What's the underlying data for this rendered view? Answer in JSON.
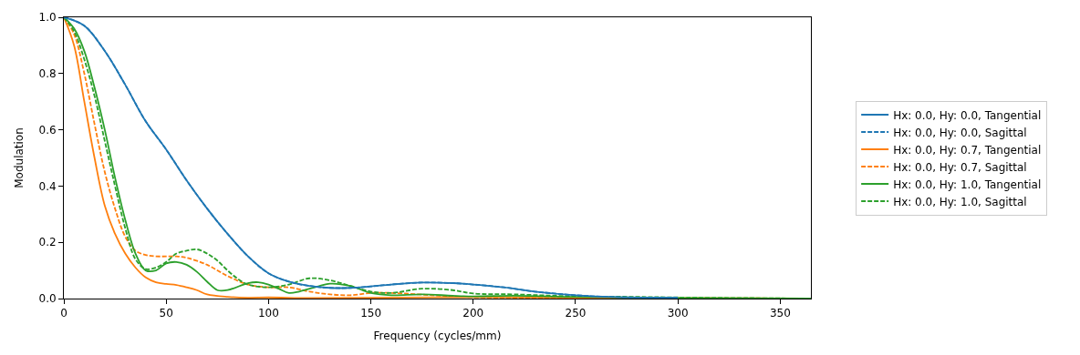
{
  "chart_data": {
    "type": "line",
    "xlabel": "Frequency (cycles/mm)",
    "ylabel": "Modulation",
    "xlim": [
      0,
      365
    ],
    "ylim": [
      0,
      1
    ],
    "xticks": [
      0,
      50,
      100,
      150,
      200,
      250,
      300,
      350
    ],
    "yticks": [
      {
        "value": 0,
        "label": "0.0"
      },
      {
        "value": 0.2,
        "label": "0.2"
      },
      {
        "value": 0.4,
        "label": "0.4"
      },
      {
        "value": 0.6,
        "label": "0.6"
      },
      {
        "value": 0.8,
        "label": "0.8"
      },
      {
        "value": 1,
        "label": "1.0"
      }
    ],
    "legend": "right",
    "marker": "none",
    "series": [
      {
        "name": "Hx: 0.0, Hy: 0.0, Tangential",
        "color": "#1f77b4",
        "line_style": "solid",
        "x": [
          0,
          10,
          20,
          30,
          40,
          50,
          60,
          70,
          80,
          90,
          100,
          110,
          120,
          130,
          140,
          150,
          160,
          175,
          190,
          200,
          215,
          230,
          250,
          270,
          300
        ],
        "values": [
          1,
          0.97,
          0.88,
          0.76,
          0.63,
          0.53,
          0.42,
          0.32,
          0.23,
          0.15,
          0.09,
          0.06,
          0.045,
          0.038,
          0.038,
          0.043,
          0.05,
          0.057,
          0.055,
          0.05,
          0.04,
          0.025,
          0.012,
          0.005,
          0.003
        ]
      },
      {
        "name": "Hx: 0.0, Hy: 0.0, Sagittal",
        "color": "#1f77b4",
        "line_style": "dashed",
        "x": [
          0,
          10,
          20,
          30,
          40,
          50,
          60,
          70,
          80,
          90,
          100,
          110,
          120,
          130,
          140,
          150,
          160,
          175,
          190,
          200,
          215,
          230,
          250,
          270,
          300
        ],
        "values": [
          1,
          0.97,
          0.88,
          0.76,
          0.63,
          0.53,
          0.42,
          0.32,
          0.23,
          0.15,
          0.09,
          0.06,
          0.045,
          0.038,
          0.038,
          0.043,
          0.05,
          0.057,
          0.055,
          0.05,
          0.04,
          0.025,
          0.012,
          0.005,
          0.003
        ]
      },
      {
        "name": "Hx: 0.0, Hy: 0.7, Tangential",
        "color": "#ff7f0e",
        "line_style": "solid",
        "x": [
          0,
          5,
          10,
          15,
          20,
          25,
          30,
          35,
          40,
          45,
          50,
          55,
          60,
          65,
          70,
          80,
          90,
          100,
          120,
          150,
          200,
          250,
          300,
          365
        ],
        "values": [
          1,
          0.9,
          0.7,
          0.5,
          0.33,
          0.23,
          0.16,
          0.11,
          0.075,
          0.058,
          0.052,
          0.048,
          0.04,
          0.03,
          0.015,
          0.006,
          0.003,
          0.004,
          0.002,
          0.003,
          0.005,
          0.003,
          0.001,
          0
        ]
      },
      {
        "name": "Hx: 0.0, Hy: 0.7, Sagittal",
        "color": "#ff7f0e",
        "line_style": "dashed",
        "x": [
          0,
          5,
          10,
          15,
          20,
          25,
          30,
          35,
          40,
          45,
          55,
          60,
          70,
          80,
          90,
          100,
          110,
          120,
          130,
          140,
          150,
          160,
          180,
          200,
          250,
          300,
          365
        ],
        "values": [
          1,
          0.94,
          0.8,
          0.62,
          0.45,
          0.32,
          0.22,
          0.17,
          0.155,
          0.15,
          0.15,
          0.145,
          0.12,
          0.08,
          0.05,
          0.04,
          0.04,
          0.025,
          0.015,
          0.012,
          0.02,
          0.02,
          0.012,
          0.005,
          0.003,
          0.002,
          0
        ]
      },
      {
        "name": "Hx: 0.0, Hy: 1.0, Tangential",
        "color": "#2ca02c",
        "line_style": "solid",
        "x": [
          0,
          5,
          10,
          15,
          20,
          25,
          30,
          35,
          40,
          45,
          50,
          55,
          60,
          65,
          70,
          75,
          80,
          90,
          95,
          100,
          105,
          110,
          115,
          125,
          130,
          140,
          150,
          160,
          175,
          190,
          200,
          220,
          250,
          300,
          365
        ],
        "values": [
          1,
          0.96,
          0.88,
          0.75,
          0.6,
          0.43,
          0.28,
          0.16,
          0.1,
          0.1,
          0.125,
          0.13,
          0.12,
          0.095,
          0.06,
          0.03,
          0.03,
          0.055,
          0.058,
          0.05,
          0.035,
          0.02,
          0.025,
          0.045,
          0.053,
          0.045,
          0.02,
          0.012,
          0.015,
          0.01,
          0.008,
          0.01,
          0.006,
          0.002,
          0
        ]
      },
      {
        "name": "Hx: 0.0, Hy: 1.0, Sagittal",
        "color": "#2ca02c",
        "line_style": "dashed",
        "x": [
          0,
          5,
          10,
          15,
          20,
          25,
          30,
          35,
          40,
          45,
          50,
          55,
          60,
          65,
          70,
          75,
          80,
          85,
          90,
          100,
          110,
          120,
          130,
          140,
          150,
          160,
          175,
          190,
          200,
          220,
          250,
          280,
          300,
          365
        ],
        "values": [
          1,
          0.95,
          0.85,
          0.72,
          0.56,
          0.4,
          0.25,
          0.14,
          0.105,
          0.11,
          0.13,
          0.16,
          0.17,
          0.175,
          0.16,
          0.135,
          0.1,
          0.07,
          0.05,
          0.04,
          0.05,
          0.072,
          0.065,
          0.045,
          0.025,
          0.02,
          0.035,
          0.03,
          0.018,
          0.015,
          0.008,
          0.006,
          0.004,
          0
        ]
      }
    ]
  }
}
